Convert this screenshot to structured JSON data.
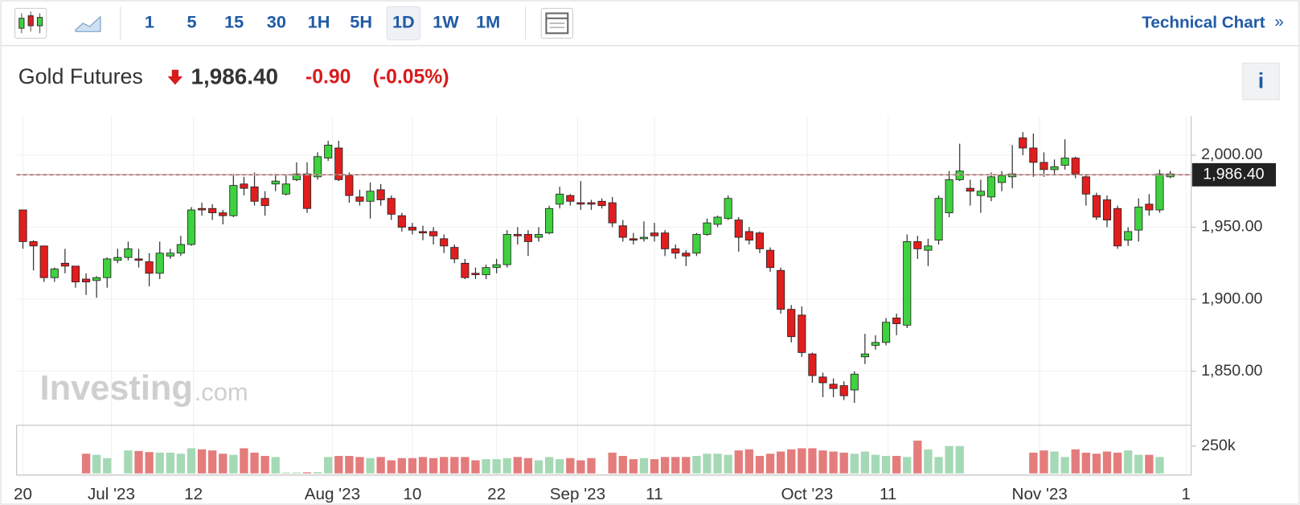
{
  "toolbar": {
    "intervals": [
      "1",
      "5",
      "15",
      "30",
      "1H",
      "5H",
      "1D",
      "1W",
      "1M"
    ],
    "active_interval": "1D",
    "link": "Technical Chart",
    "link_arrow": "»"
  },
  "header": {
    "name": "Gold Futures",
    "price": "1,986.40",
    "change": "-0.90",
    "change_pct": "(-0.05%)",
    "info_button": "i"
  },
  "watermark": {
    "brand": "Investing",
    "suffix": ".com"
  },
  "chart_data": {
    "type": "candlestick",
    "up_color": "#3fd13f",
    "down_color": "#e01e1e",
    "volume_up_color": "#a5d9b6",
    "volume_down_color": "#e47c7c",
    "open": [
      1962,
      1940,
      1937,
      1915,
      1925,
      1923,
      1914,
      1913,
      1915,
      1927,
      1929,
      1928,
      1926,
      1918,
      1930,
      1932,
      1938,
      1963,
      1963,
      1960,
      1958,
      1980,
      1978,
      1970,
      1980,
      1973,
      1983,
      1987,
      1985,
      1998,
      2005,
      1986,
      1971,
      1968,
      1976,
      1970,
      1958,
      1950,
      1947,
      1947,
      1942,
      1936,
      1925,
      1918,
      1917,
      1922,
      1924,
      1945,
      1945,
      1943,
      1946,
      1966,
      1972,
      1967,
      1967,
      1968,
      1967,
      1951,
      1942,
      1942,
      1946,
      1946,
      1935,
      1932,
      1932,
      1945,
      1952,
      1956,
      1955,
      1947,
      1946,
      1934,
      1920,
      1893,
      1889,
      1862,
      1846,
      1841,
      1840,
      1837,
      1860,
      1868,
      1870,
      1887,
      1882,
      1940,
      1934,
      1941,
      1960,
      1983,
      1977,
      1972,
      1971,
      1981,
      1985,
      2012,
      2005,
      1995,
      1990,
      1993,
      1998,
      1985,
      1972,
      1969,
      1963,
      1941,
      1948,
      1966,
      1962,
      1985
    ],
    "high": [
      1962,
      1941,
      1937,
      1922,
      1935,
      1923,
      1918,
      1916,
      1929,
      1935,
      1940,
      1935,
      1932,
      1940,
      1935,
      1944,
      1964,
      1967,
      1966,
      1962,
      1987,
      1985,
      1988,
      1975,
      1987,
      1986,
      1995,
      1995,
      2002,
      2010,
      2010,
      1988,
      1976,
      1981,
      1980,
      1972,
      1960,
      1953,
      1951,
      1950,
      1945,
      1938,
      1928,
      1922,
      1924,
      1928,
      1948,
      1950,
      1948,
      1950,
      1965,
      1978,
      1973,
      1982,
      1969,
      1970,
      1971,
      1955,
      1946,
      1954,
      1953,
      1948,
      1938,
      1934,
      1946,
      1956,
      1958,
      1972,
      1957,
      1950,
      1947,
      1936,
      1922,
      1896,
      1895,
      1863,
      1849,
      1845,
      1843,
      1850,
      1876,
      1875,
      1887,
      1890,
      1945,
      1944,
      1942,
      1972,
      1989,
      2008,
      1983,
      1983,
      1988,
      1989,
      2007,
      2016,
      2015,
      2002,
      1997,
      2011,
      1999,
      1987,
      1974,
      1972,
      1965,
      1950,
      1970,
      1973,
      1990,
      1989
    ],
    "low": [
      1935,
      1920,
      1912,
      1912,
      1918,
      1908,
      1903,
      1901,
      1908,
      1925,
      1927,
      1922,
      1909,
      1914,
      1928,
      1930,
      1937,
      1958,
      1955,
      1952,
      1957,
      1972,
      1965,
      1958,
      1975,
      1972,
      1982,
      1960,
      1983,
      1996,
      1982,
      1967,
      1965,
      1956,
      1965,
      1955,
      1947,
      1945,
      1941,
      1938,
      1932,
      1925,
      1914,
      1914,
      1914,
      1918,
      1922,
      1938,
      1930,
      1940,
      1945,
      1963,
      1965,
      1962,
      1962,
      1963,
      1950,
      1940,
      1938,
      1940,
      1940,
      1930,
      1928,
      1923,
      1930,
      1944,
      1950,
      1955,
      1933,
      1938,
      1932,
      1919,
      1890,
      1870,
      1860,
      1842,
      1832,
      1832,
      1830,
      1828,
      1855,
      1865,
      1868,
      1875,
      1880,
      1928,
      1923,
      1938,
      1957,
      1982,
      1965,
      1960,
      1968,
      1975,
      1977,
      2000,
      1985,
      1985,
      1987,
      1990,
      1984,
      1965,
      1955,
      1950,
      1935,
      1937,
      1940,
      1958,
      1960,
      1984
    ],
    "close": [
      1940,
      1937,
      1915,
      1921,
      1923,
      1912,
      1912,
      1915,
      1928,
      1929,
      1935,
      1927,
      1918,
      1932,
      1932,
      1938,
      1962,
      1962,
      1960,
      1958,
      1979,
      1977,
      1968,
      1965,
      1982,
      1980,
      1987,
      1963,
      1999,
      2007,
      1983,
      1972,
      1968,
      1975,
      1969,
      1959,
      1950,
      1948,
      1946,
      1944,
      1937,
      1928,
      1915,
      1917,
      1922,
      1924,
      1945,
      1944,
      1940,
      1945,
      1963,
      1973,
      1968,
      1966,
      1966,
      1965,
      1953,
      1943,
      1941,
      1943,
      1944,
      1935,
      1932,
      1930,
      1945,
      1953,
      1957,
      1970,
      1943,
      1941,
      1935,
      1922,
      1893,
      1874,
      1863,
      1847,
      1842,
      1838,
      1833,
      1848,
      1862,
      1870,
      1884,
      1883,
      1940,
      1935,
      1937,
      1970,
      1983,
      1989,
      1975,
      1975,
      1985,
      1986,
      1987,
      2005,
      1995,
      1990,
      1992,
      1998,
      1987,
      1973,
      1957,
      1955,
      1937,
      1947,
      1964,
      1962,
      1987,
      1987
    ],
    "volume": [
      null,
      null,
      null,
      null,
      null,
      null,
      180000,
      170000,
      140000,
      null,
      210000,
      205000,
      195000,
      190000,
      190000,
      180000,
      230000,
      220000,
      210000,
      180000,
      170000,
      230000,
      190000,
      160000,
      150000,
      8000,
      8000,
      10000,
      12000,
      150000,
      160000,
      160000,
      150000,
      140000,
      150000,
      120000,
      140000,
      140000,
      150000,
      140000,
      150000,
      150000,
      150000,
      120000,
      130000,
      130000,
      140000,
      150000,
      140000,
      120000,
      150000,
      130000,
      140000,
      120000,
      140000,
      null,
      190000,
      160000,
      130000,
      140000,
      130000,
      150000,
      150000,
      150000,
      160000,
      180000,
      180000,
      170000,
      210000,
      220000,
      160000,
      180000,
      200000,
      220000,
      230000,
      230000,
      210000,
      200000,
      190000,
      180000,
      200000,
      170000,
      160000,
      160000,
      150000,
      300000,
      220000,
      150000,
      250000,
      250000,
      null,
      null,
      null,
      null,
      null,
      null,
      190000,
      210000,
      200000,
      150000,
      220000,
      190000,
      180000,
      200000,
      190000,
      210000,
      170000,
      170000,
      150000,
      null
    ],
    "xlim": [
      -0.6,
      111
    ],
    "xticks": [
      {
        "value": 0,
        "label": "20"
      },
      {
        "value": 8.4,
        "label": "Jul '23"
      },
      {
        "value": 16.2,
        "label": "12"
      },
      {
        "value": 29.4,
        "label": "Aug '23"
      },
      {
        "value": 37,
        "label": "10"
      },
      {
        "value": 45,
        "label": "22"
      },
      {
        "value": 52.7,
        "label": "Sep '23"
      },
      {
        "value": 60,
        "label": "11"
      },
      {
        "value": 74.5,
        "label": "Oct '23"
      },
      {
        "value": 82.2,
        "label": "11"
      },
      {
        "value": 96.6,
        "label": "Nov '23"
      },
      {
        "value": 110.5,
        "label": "1"
      }
    ],
    "ylim": [
      1812.5,
      2027
    ],
    "yticks": [
      {
        "value": 1850,
        "label": "1,850.00"
      },
      {
        "value": 1900,
        "label": "1,900.00"
      },
      {
        "value": 1950,
        "label": "1,950.00"
      },
      {
        "value": 2000,
        "label": "2,000.00"
      }
    ],
    "volume_ylim": [
      0,
      440000
    ],
    "volume_yticks": [
      {
        "value": 250000,
        "label": "250k"
      }
    ],
    "last_price": {
      "value": 1986.4,
      "label": "1,986.40"
    },
    "grid": true
  }
}
